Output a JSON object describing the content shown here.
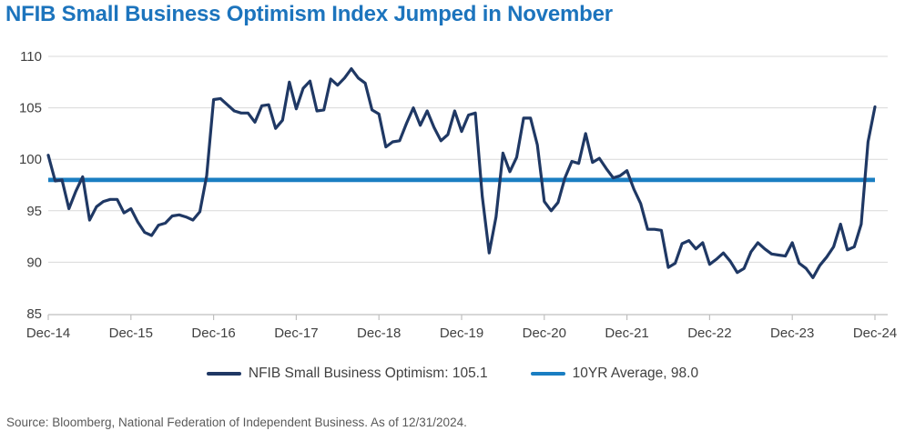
{
  "title": "NFIB Small Business Optimism Index Jumped in November",
  "source_note": "Source: Bloomberg, National Federation of Independent Business. As of 12/31/2024.",
  "legend": {
    "series_label": "NFIB Small Business Optimism: 105.1",
    "average_label": "10YR Average, 98.0"
  },
  "colors": {
    "title": "#1c74bd",
    "series": "#1f3864",
    "average": "#1a7ec2",
    "grid": "#d9d9d9",
    "axis": "#bfbfbf",
    "tick_text": "#404040",
    "source_text": "#595959"
  },
  "chart_data": {
    "type": "line",
    "title": "NFIB Small Business Optimism Index Jumped in November",
    "x_unit": "month",
    "x_start": "Dec-14",
    "x_end": "Dec-24",
    "x_tick_labels": [
      "Dec-14",
      "Dec-15",
      "Dec-16",
      "Dec-17",
      "Dec-18",
      "Dec-19",
      "Dec-20",
      "Dec-21",
      "Dec-22",
      "Dec-23",
      "Dec-24"
    ],
    "y_ticks": [
      85,
      90,
      95,
      100,
      105,
      110
    ],
    "ylim": [
      85,
      110
    ],
    "grid": "horizontal",
    "legend_position": "bottom",
    "series": [
      {
        "name": "NFIB Small Business Optimism",
        "last_value": 105.1,
        "values": [
          100.4,
          97.9,
          98.0,
          95.2,
          96.9,
          98.3,
          94.1,
          95.4,
          95.9,
          96.1,
          96.1,
          94.8,
          95.2,
          93.9,
          92.9,
          92.6,
          93.6,
          93.8,
          94.5,
          94.6,
          94.4,
          94.1,
          94.9,
          98.4,
          105.8,
          105.9,
          105.3,
          104.7,
          104.5,
          104.5,
          103.6,
          105.2,
          105.3,
          103.0,
          103.8,
          107.5,
          104.9,
          106.9,
          107.6,
          104.7,
          104.8,
          107.8,
          107.2,
          107.9,
          108.8,
          107.9,
          107.4,
          104.8,
          104.4,
          101.2,
          101.7,
          101.8,
          103.5,
          105.0,
          103.3,
          104.7,
          103.1,
          101.8,
          102.4,
          104.7,
          102.7,
          104.3,
          104.5,
          96.4,
          90.9,
          94.4,
          100.6,
          98.8,
          100.2,
          104.0,
          104.0,
          101.4,
          95.9,
          95.0,
          95.8,
          98.2,
          99.8,
          99.6,
          102.5,
          99.7,
          100.1,
          99.1,
          98.2,
          98.4,
          98.9,
          97.1,
          95.7,
          93.2,
          93.2,
          93.1,
          89.5,
          89.9,
          91.8,
          92.1,
          91.3,
          91.9,
          89.8,
          90.3,
          90.9,
          90.1,
          89.0,
          89.4,
          91.0,
          91.9,
          91.3,
          90.8,
          90.7,
          90.6,
          91.9,
          89.9,
          89.4,
          88.5,
          89.7,
          90.5,
          91.5,
          93.7,
          91.2,
          91.5,
          93.7,
          101.7,
          105.1
        ]
      },
      {
        "name": "10YR Average",
        "type": "constant",
        "value": 98.0
      }
    ]
  }
}
